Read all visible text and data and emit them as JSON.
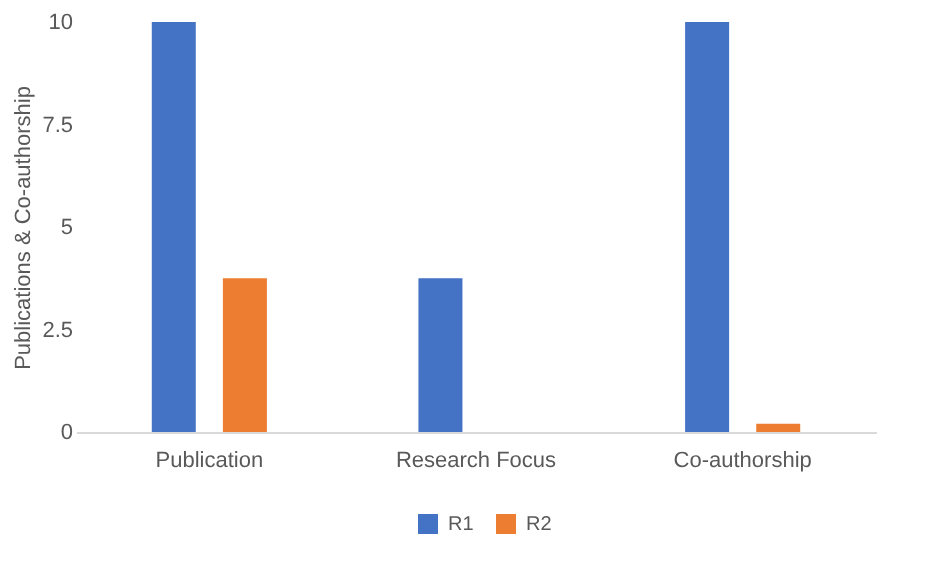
{
  "chart_data": {
    "type": "bar",
    "ylabel": "Publications & Co-authorship",
    "categories": [
      "Publication",
      "Research Focus",
      "Co-authorship"
    ],
    "series": [
      {
        "name": "R1",
        "color": "#4472c4",
        "values": [
          10,
          3.75,
          10
        ]
      },
      {
        "name": "R2",
        "color": "#ed7d31",
        "values": [
          3.75,
          0,
          0.2
        ]
      }
    ],
    "ylim": [
      0,
      10
    ],
    "yticks": [
      0,
      2.5,
      5,
      7.5,
      10
    ],
    "grid": false,
    "legend": "bottom"
  }
}
